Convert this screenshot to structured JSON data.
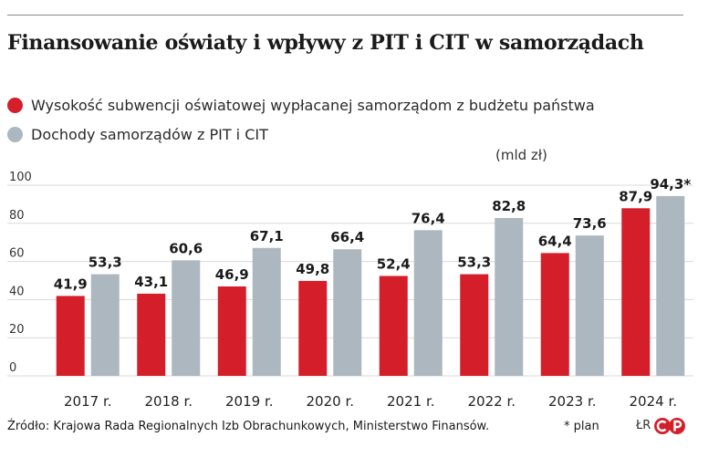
{
  "title": "Finansowanie oświaty i wpływy z PIT i CIT w samorządach",
  "unit_label": "(mld zł)",
  "footer": {
    "source": "Źródło: Krajowa Rada Regionalnych Izb Obrachunkowych, Ministerstwo Finansów.",
    "plan_note": "* plan",
    "publisher_mark": "ŁR"
  },
  "colors": {
    "series_1": "#d41e2a",
    "series_2": "#adb7bf",
    "gridline": "#d9d9d9",
    "text": "#1a1a1a"
  },
  "chart_data": {
    "type": "bar",
    "categories": [
      "2017 r.",
      "2018 r.",
      "2019 r.",
      "2020 r.",
      "2021 r.",
      "2022 r.",
      "2023 r.",
      "2024 r."
    ],
    "series": [
      {
        "name": "Wysokość subwencji oświatowej wypłacanej samorządom z budżetu państwa",
        "values": [
          41.9,
          43.1,
          46.9,
          49.8,
          52.4,
          53.3,
          64.4,
          87.9
        ],
        "labels": [
          "41,9",
          "43,1",
          "46,9",
          "49,8",
          "52,4",
          "53,3",
          "64,4",
          "87,9"
        ]
      },
      {
        "name": "Dochody samorządów z PIT i CIT",
        "values": [
          53.3,
          60.6,
          67.1,
          66.4,
          76.4,
          82.8,
          73.6,
          94.3
        ],
        "labels": [
          "53,3",
          "60,6",
          "67,1",
          "66,4",
          "76,4",
          "82,8",
          "73,6",
          "94,3*"
        ]
      }
    ],
    "ylim": [
      0,
      100
    ],
    "yticks": [
      0,
      20,
      40,
      60,
      80,
      100
    ],
    "grid": true,
    "legend_position": "top-left"
  }
}
